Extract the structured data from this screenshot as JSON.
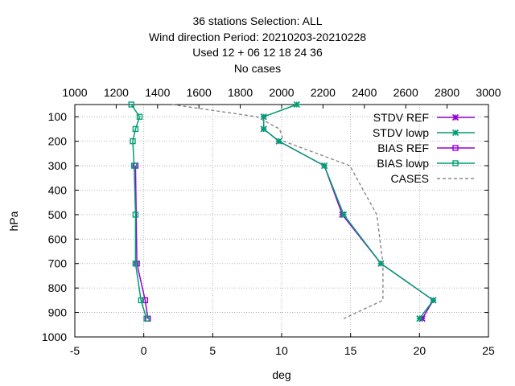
{
  "title_lines": [
    "36 stations Selection: ALL",
    "Wind direction  Period: 20210203-20210228",
    "Used  12  + 06 12 18 24 36",
    "No cases"
  ],
  "chart_data": {
    "type": "line",
    "xlabel": "deg",
    "ylabel": "hPa",
    "xlim": [
      -5,
      25
    ],
    "x_ticks": [
      -5,
      0,
      5,
      10,
      15,
      20,
      25
    ],
    "x2lim": [
      1000,
      3000
    ],
    "x2_ticks": [
      1000,
      1200,
      1400,
      1600,
      1800,
      2000,
      2200,
      2400,
      2600,
      2800,
      3000
    ],
    "ylim": [
      1000,
      50
    ],
    "y_ticks": [
      100,
      200,
      300,
      400,
      500,
      600,
      700,
      800,
      900,
      1000
    ],
    "grid": true,
    "legend_position": "top-right",
    "series": [
      {
        "name": "STDV REF",
        "color": "#9400d3",
        "marker": "x-star",
        "dash": false,
        "axis": "x1",
        "points": [
          [
            8.7,
            100
          ],
          [
            8.7,
            150
          ],
          [
            9.8,
            200
          ],
          [
            13.1,
            300
          ],
          [
            14.4,
            500
          ],
          [
            17.2,
            700
          ],
          [
            21.0,
            850
          ],
          [
            20.2,
            925
          ]
        ]
      },
      {
        "name": "STDV lowp",
        "color": "#009e73",
        "marker": "x-star",
        "dash": false,
        "axis": "x1",
        "points": [
          [
            11.1,
            50
          ],
          [
            8.7,
            100
          ],
          [
            8.7,
            150
          ],
          [
            9.8,
            200
          ],
          [
            13.1,
            300
          ],
          [
            14.5,
            500
          ],
          [
            17.2,
            700
          ],
          [
            21.0,
            850
          ],
          [
            20.0,
            925
          ]
        ]
      },
      {
        "name": "BIAS REF",
        "color": "#9400d3",
        "marker": "square",
        "dash": false,
        "axis": "x1",
        "points": [
          [
            -0.6,
            300
          ],
          [
            -0.5,
            700
          ],
          [
            0.1,
            850
          ],
          [
            0.3,
            925
          ]
        ]
      },
      {
        "name": "BIAS lowp",
        "color": "#009e73",
        "marker": "square",
        "dash": false,
        "axis": "x1",
        "points": [
          [
            -0.9,
            50
          ],
          [
            -0.3,
            100
          ],
          [
            -0.6,
            150
          ],
          [
            -0.8,
            200
          ],
          [
            -0.7,
            300
          ],
          [
            -0.6,
            500
          ],
          [
            -0.6,
            700
          ],
          [
            -0.2,
            850
          ],
          [
            0.2,
            925
          ]
        ]
      },
      {
        "name": "CASES",
        "color": "#888888",
        "marker": "none",
        "dash": true,
        "axis": "x2",
        "points": [
          [
            1470,
            50
          ],
          [
            1880,
            100
          ],
          [
            1990,
            150
          ],
          [
            2010,
            200
          ],
          [
            2330,
            300
          ],
          [
            2460,
            500
          ],
          [
            2490,
            700
          ],
          [
            2490,
            850
          ],
          [
            2300,
            925
          ]
        ]
      }
    ]
  }
}
